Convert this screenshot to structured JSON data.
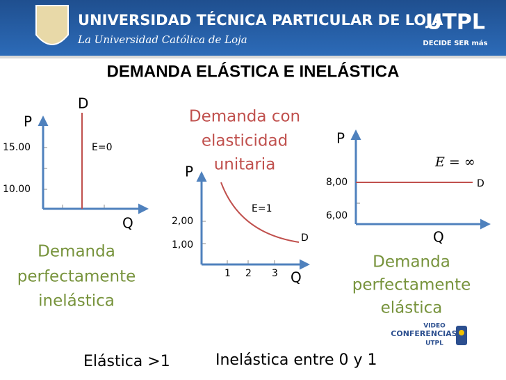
{
  "header": {
    "university": "UNIVERSIDAD TÉCNICA PARTICULAR DE LOJA",
    "subtitle": "La Universidad Católica de Loja",
    "brand": "UTPL",
    "slogan": "DECIDE SER más"
  },
  "title": "DEMANDA ELÁSTICA E INELÁSTICA",
  "panels": [
    {
      "p_label": "P",
      "d_label": "D",
      "e_label": "E=0",
      "q_label": "Q",
      "y_ticks": [
        "15.00",
        "10.00"
      ],
      "caption": [
        "Demanda",
        "perfectamente",
        "inelástica"
      ]
    },
    {
      "p_label": "P",
      "d_label": "D",
      "e_label": "E=1",
      "q_label": "Q",
      "y_ticks": [
        "2,00",
        "1,00"
      ],
      "x_ticks": [
        "1",
        "2",
        "3"
      ],
      "caption": [
        "Demanda con",
        "elasticidad",
        "unitaria"
      ]
    },
    {
      "p_label": "P",
      "d_label": "D",
      "e_label": "E = ∞",
      "q_label": "Q",
      "y_ticks": [
        "8,00",
        "6,00"
      ],
      "caption": [
        "Demanda",
        "perfectamente",
        "elástica"
      ]
    }
  ],
  "logo": [
    "VIDEO",
    "CONFERENCIAS",
    "UTPL"
  ],
  "footer": {
    "left": "Elástica >1",
    "right": "Inelástica entre 0 y 1"
  }
}
